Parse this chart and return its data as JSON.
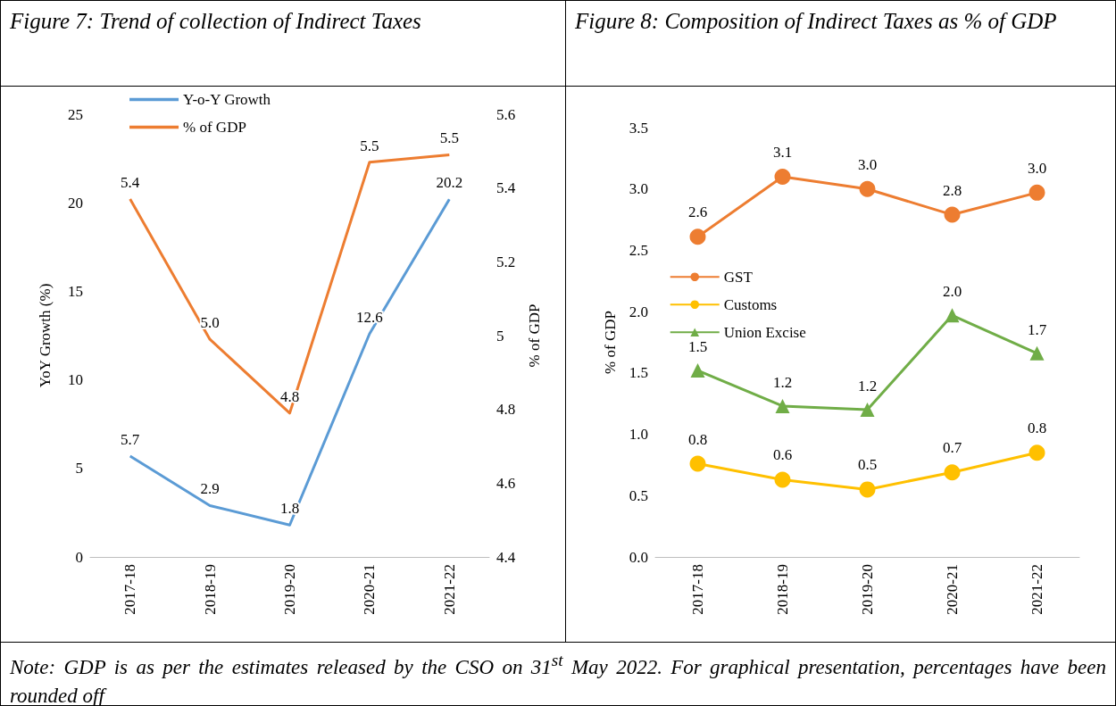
{
  "chart_data": [
    {
      "type": "line",
      "title": "Figure 7: Trend of collection of Indirect Taxes",
      "ylabel": "YoY Growth (%)",
      "y2label": "% of GDP",
      "categories": [
        "2017-18",
        "2018-19",
        "2019-20",
        "2020-21",
        "2021-22"
      ],
      "series": [
        {
          "name": "Y-o-Y Growth",
          "color": "#5b9bd5",
          "values": [
            5.7,
            2.9,
            1.8,
            12.6,
            20.2
          ],
          "value_labels": [
            "5.7",
            "2.9",
            "1.8",
            "12.6",
            "20.2"
          ]
        },
        {
          "name": "% of GDP",
          "color": "#ed7d31",
          "axis": "y2",
          "values": [
            5.37,
            4.99,
            4.79,
            5.47,
            5.49
          ],
          "value_labels": [
            "5.4",
            "5.0",
            "4.8",
            "5.5",
            "5.5"
          ]
        }
      ],
      "ylim": [
        0,
        25
      ],
      "yticks": [
        0,
        5,
        10,
        15,
        20,
        25
      ],
      "y2lim": [
        4.4,
        5.6
      ],
      "y2ticks": [
        4.4,
        4.6,
        4.8,
        5.0,
        5.2,
        5.4,
        5.6
      ],
      "legend": "top left",
      "marker": "none",
      "annotations": [
        "Note: GDP is as per the estimates released by the CSO on 31$^{st}$ May 2022. For graphical presentation, percentages have been rounded off"
      ]
    },
    {
      "type": "line",
      "title": "Figure 8: Composition of Indirect Taxes as % of GDP",
      "ylabel": "% of GDP",
      "categories": [
        "2017-18",
        "2018-19",
        "2019-20",
        "2020-21",
        "2021-22"
      ],
      "series": [
        {
          "name": "GST",
          "color": "#ed7d31",
          "marker": "circle",
          "values": [
            2.61,
            3.1,
            3.0,
            2.79,
            2.97
          ],
          "value_labels": [
            "2.6",
            "3.1",
            "3.0",
            "2.8",
            "3.0"
          ]
        },
        {
          "name": "Customs",
          "color": "#ffc000",
          "marker": "circle",
          "values": [
            0.76,
            0.63,
            0.55,
            0.69,
            0.85
          ],
          "value_labels": [
            "0.8",
            "0.6",
            "0.5",
            "0.7",
            "0.8"
          ]
        },
        {
          "name": "Union Excise",
          "color": "#70ad47",
          "marker": "triangle",
          "values": [
            1.52,
            1.23,
            1.2,
            1.97,
            1.66
          ],
          "value_labels": [
            "1.5",
            "1.2",
            "1.2",
            "2.0",
            "1.7"
          ]
        }
      ],
      "ylim": [
        0,
        3.5
      ],
      "yticks": [
        {
          "value": 0,
          "label": "0.0"
        },
        {
          "value": 0.5,
          "label": "0.5"
        },
        {
          "value": 1,
          "label": "1.0"
        },
        {
          "value": 1.5,
          "label": "1.5"
        },
        {
          "value": 2,
          "label": "2.0"
        },
        {
          "value": 2.5,
          "label": "2.5"
        },
        {
          "value": 3,
          "label": "3.0"
        },
        {
          "value": 3.5,
          "label": "3.5"
        }
      ],
      "legend": "left"
    }
  ]
}
